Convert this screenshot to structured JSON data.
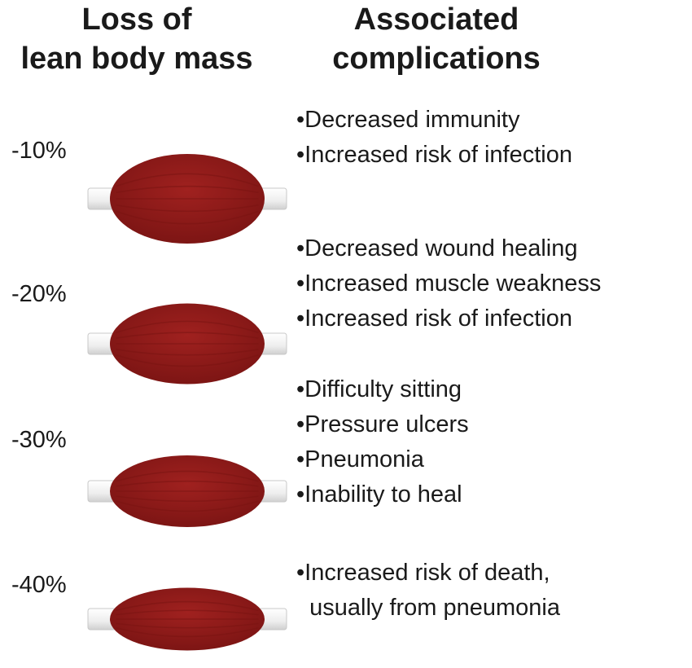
{
  "headers": {
    "left": [
      "Loss of",
      "lean body mass"
    ],
    "right": [
      "Associated",
      "complications"
    ]
  },
  "colors": {
    "muscle": "#a0211f",
    "muscle_dark": "#7a1413",
    "tendon": "#eeeeee",
    "text": "#1a1a1a"
  },
  "rows": [
    {
      "percent": "-10%",
      "muscle_fraction": 1.0,
      "complications": [
        "•Decreased immunity",
        "•Increased risk of infection"
      ]
    },
    {
      "percent": "-20%",
      "muscle_fraction": 0.9,
      "complications": [
        "•Decreased wound healing",
        "•Increased muscle weakness",
        "•Increased risk of infection"
      ]
    },
    {
      "percent": "-30%",
      "muscle_fraction": 0.8,
      "complications": [
        "•Difficulty sitting",
        "•Pressure ulcers",
        "•Pneumonia",
        "•Inability to heal"
      ]
    },
    {
      "percent": "-40%",
      "muscle_fraction": 0.7,
      "complications": [
        "•Increased risk of death,",
        "  usually from pneumonia"
      ]
    }
  ]
}
